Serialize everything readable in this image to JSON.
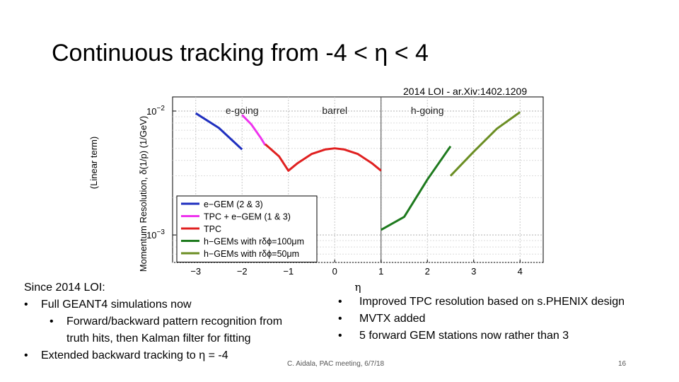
{
  "slide": {
    "title": "Continuous tracking from -4 < η < 4",
    "chart_reference": "2014 LOI - ar.Xiv:1402.1209",
    "left_axis_note": "(Linear term)",
    "footer": "C. Aidala, PAC meeting, 6/7/18",
    "page_number": "16"
  },
  "notes_left": {
    "heading": "Since 2014 LOI:",
    "item1": "Full GEANT4 simulations now",
    "sub1_line1": "Forward/backward pattern recognition from",
    "sub1_line2": "truth hits, then Kalman filter for fitting",
    "item2": "Extended backward tracking to η = -4",
    "bullet": "•"
  },
  "notes_right": {
    "items": [
      "Improved TPC resolution based on s.PHENIX design",
      "MVTX added",
      "5 forward GEM stations now rather than 3"
    ],
    "bullet": "•"
  },
  "chart_data": {
    "type": "line",
    "title": "",
    "xlabel": "η",
    "ylabel": "Momentum Resolution, δ(1/p) (1/GeV)",
    "xlim": [
      -3.5,
      4.5
    ],
    "ylim": [
      0.0006,
      0.013
    ],
    "yscale": "log",
    "x_ticks": [
      -3,
      -2,
      -1,
      0,
      1,
      2,
      3,
      4
    ],
    "y_tick_labels": [
      {
        "value": 0.01,
        "base": "10",
        "exp": "−2"
      },
      {
        "value": 0.001,
        "base": "10",
        "exp": "−3"
      }
    ],
    "region_labels": [
      {
        "text": "e-going",
        "x": -2.0
      },
      {
        "text": "barrel",
        "x": 0.0
      },
      {
        "text": "h-going",
        "x": 2.0
      }
    ],
    "region_dividers": [
      1.0
    ],
    "grid": true,
    "legend_position": "bottom-left",
    "series": [
      {
        "name": "e−GEM (2 & 3)",
        "color": "#1f2fbf",
        "x": [
          -3.0,
          -2.5,
          -2.0
        ],
        "y": [
          0.0096,
          0.0073,
          0.0049
        ]
      },
      {
        "name": "TPC + e−GEM (1 & 3)",
        "color": "#ee33ee",
        "x": [
          -2.0,
          -1.8,
          -1.6,
          -1.5
        ],
        "y": [
          0.0093,
          0.0078,
          0.0061,
          0.0053
        ]
      },
      {
        "name": "TPC",
        "color": "#e02020",
        "x": [
          -1.5,
          -1.2,
          -1.0,
          -0.8,
          -0.5,
          -0.2,
          0.0,
          0.2,
          0.5,
          0.8,
          1.0
        ],
        "y": [
          0.0054,
          0.0043,
          0.0033,
          0.0038,
          0.0045,
          0.0049,
          0.005,
          0.0049,
          0.0045,
          0.0038,
          0.0033
        ]
      },
      {
        "name": "h−GEMs with rδϕ=100μm",
        "color": "#1e7a1e",
        "x": [
          1.0,
          1.5,
          2.0,
          2.5
        ],
        "y": [
          0.0011,
          0.0014,
          0.0028,
          0.0052
        ]
      },
      {
        "name": "h−GEMs with rδϕ=50μm",
        "color": "#6b8e23",
        "x": [
          2.5,
          3.0,
          3.5,
          4.0
        ],
        "y": [
          0.003,
          0.0047,
          0.0072,
          0.0098
        ]
      }
    ]
  }
}
